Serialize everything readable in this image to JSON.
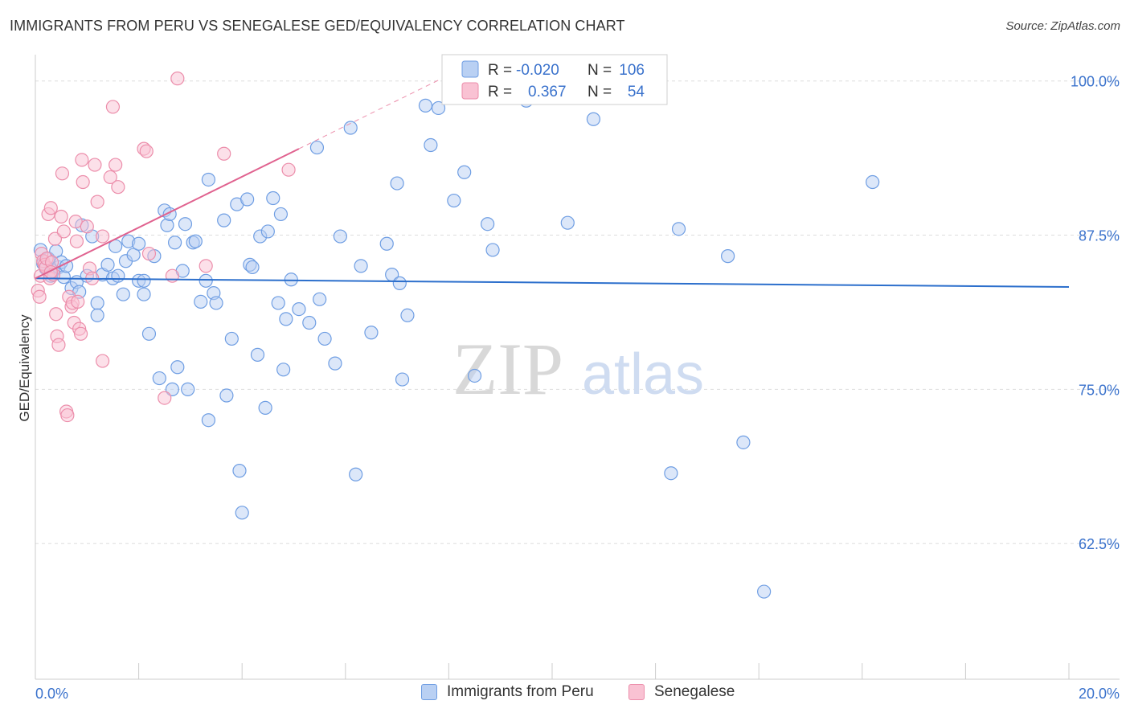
{
  "header": {
    "title": "IMMIGRANTS FROM PERU VS SENEGALESE GED/EQUIVALENCY CORRELATION CHART",
    "source": "Source: ZipAtlas.com"
  },
  "watermark": {
    "zip": "ZIP",
    "atlas": "atlas"
  },
  "legend": {
    "r_label": "R =",
    "n_label": "N =",
    "entries": [
      {
        "r": "-0.020",
        "n": "106"
      },
      {
        "r": "0.367",
        "n": "54"
      }
    ]
  },
  "colors": {
    "peru_fill": "#b9d0f3",
    "peru_stroke": "#6f9ee3",
    "peru_line": "#2c6fcc",
    "sen_fill": "#f9c2d3",
    "sen_stroke": "#ec8eab",
    "sen_line": "#e0628f",
    "tick_text": "#3a72cc",
    "grid": "#dddddd"
  },
  "chart_data": {
    "type": "scatter",
    "title": "IMMIGRANTS FROM PERU VS SENEGALESE GED/EQUIVALENCY CORRELATION CHART",
    "xlabel": "",
    "ylabel": "GED/Equivalency",
    "xlim": [
      0,
      20
    ],
    "ylim": [
      51.5,
      102
    ],
    "x_tick_labels": [
      "0.0%",
      "20.0%"
    ],
    "y_ticks": [
      62.5,
      75.0,
      87.5,
      100.0
    ],
    "y_tick_labels": [
      "62.5%",
      "75.0%",
      "87.5%",
      "100.0%"
    ],
    "grid": true,
    "legend_position": "top-center",
    "series": [
      {
        "name": "Immigrants from Peru",
        "r": -0.02,
        "n": 106,
        "trend": {
          "x": [
            0,
            20
          ],
          "y": [
            84.0,
            83.3
          ]
        },
        "points": [
          [
            0.1,
            86.3
          ],
          [
            0.15,
            85.2
          ],
          [
            0.2,
            84.8
          ],
          [
            0.25,
            85.6
          ],
          [
            0.3,
            84.2
          ],
          [
            0.35,
            84.6
          ],
          [
            0.4,
            86.2
          ],
          [
            0.45,
            84.9
          ],
          [
            0.5,
            85.3
          ],
          [
            0.55,
            84.1
          ],
          [
            0.6,
            85.0
          ],
          [
            0.7,
            83.2
          ],
          [
            0.8,
            83.7
          ],
          [
            0.85,
            82.9
          ],
          [
            0.9,
            88.3
          ],
          [
            1.0,
            84.2
          ],
          [
            1.1,
            87.4
          ],
          [
            1.2,
            82.0
          ],
          [
            1.2,
            81.0
          ],
          [
            1.3,
            84.3
          ],
          [
            1.4,
            85.1
          ],
          [
            1.5,
            84.0
          ],
          [
            1.55,
            86.6
          ],
          [
            1.6,
            84.2
          ],
          [
            1.7,
            82.7
          ],
          [
            1.75,
            85.4
          ],
          [
            1.8,
            87.0
          ],
          [
            1.9,
            85.9
          ],
          [
            2.0,
            83.8
          ],
          [
            2.0,
            86.8
          ],
          [
            2.1,
            83.8
          ],
          [
            2.1,
            82.7
          ],
          [
            2.2,
            79.5
          ],
          [
            2.3,
            85.8
          ],
          [
            2.4,
            75.9
          ],
          [
            2.5,
            89.5
          ],
          [
            2.55,
            88.3
          ],
          [
            2.6,
            89.2
          ],
          [
            2.65,
            75.0
          ],
          [
            2.7,
            86.9
          ],
          [
            2.75,
            76.8
          ],
          [
            2.85,
            84.6
          ],
          [
            2.9,
            88.4
          ],
          [
            2.95,
            75.0
          ],
          [
            3.05,
            86.9
          ],
          [
            3.1,
            87.0
          ],
          [
            3.2,
            82.1
          ],
          [
            3.3,
            83.8
          ],
          [
            3.35,
            92.0
          ],
          [
            3.35,
            72.5
          ],
          [
            3.45,
            82.8
          ],
          [
            3.5,
            82.0
          ],
          [
            3.65,
            88.7
          ],
          [
            3.7,
            74.5
          ],
          [
            3.8,
            79.1
          ],
          [
            3.9,
            90.0
          ],
          [
            3.95,
            68.4
          ],
          [
            4.0,
            65.0
          ],
          [
            4.1,
            90.4
          ],
          [
            4.15,
            85.1
          ],
          [
            4.2,
            84.9
          ],
          [
            4.3,
            77.8
          ],
          [
            4.35,
            87.4
          ],
          [
            4.45,
            73.5
          ],
          [
            4.5,
            87.8
          ],
          [
            4.6,
            90.5
          ],
          [
            4.7,
            82.0
          ],
          [
            4.75,
            89.2
          ],
          [
            4.8,
            76.6
          ],
          [
            4.85,
            80.7
          ],
          [
            4.95,
            83.9
          ],
          [
            5.1,
            81.5
          ],
          [
            5.3,
            80.4
          ],
          [
            5.45,
            94.6
          ],
          [
            5.5,
            82.3
          ],
          [
            5.6,
            79.1
          ],
          [
            5.8,
            77.1
          ],
          [
            5.9,
            87.4
          ],
          [
            6.1,
            96.2
          ],
          [
            6.2,
            68.1
          ],
          [
            6.3,
            85.0
          ],
          [
            6.5,
            79.6
          ],
          [
            6.8,
            86.8
          ],
          [
            6.9,
            84.3
          ],
          [
            7.0,
            91.7
          ],
          [
            7.05,
            83.6
          ],
          [
            7.1,
            75.8
          ],
          [
            7.2,
            81.0
          ],
          [
            7.55,
            98.0
          ],
          [
            7.65,
            94.8
          ],
          [
            7.8,
            97.8
          ],
          [
            8.1,
            90.3
          ],
          [
            8.3,
            92.6
          ],
          [
            8.5,
            76.1
          ],
          [
            8.75,
            88.4
          ],
          [
            8.85,
            86.3
          ],
          [
            9.5,
            98.4
          ],
          [
            10.3,
            88.5
          ],
          [
            10.8,
            96.9
          ],
          [
            12.3,
            68.2
          ],
          [
            12.45,
            88.0
          ],
          [
            13.4,
            85.8
          ],
          [
            13.7,
            70.7
          ],
          [
            14.1,
            58.6
          ],
          [
            16.2,
            91.8
          ],
          [
            9.8,
            100.0
          ]
        ]
      },
      {
        "name": "Senegalese",
        "r": 0.367,
        "n": 54,
        "trend": {
          "x": [
            0,
            5.1
          ],
          "y": [
            84.0,
            94.5
          ]
        },
        "points": [
          [
            0.05,
            83.0
          ],
          [
            0.08,
            82.5
          ],
          [
            0.1,
            84.2
          ],
          [
            0.12,
            86.0
          ],
          [
            0.15,
            85.4
          ],
          [
            0.18,
            85.1
          ],
          [
            0.2,
            84.9
          ],
          [
            0.22,
            85.6
          ],
          [
            0.25,
            89.2
          ],
          [
            0.28,
            84.0
          ],
          [
            0.3,
            89.7
          ],
          [
            0.32,
            85.3
          ],
          [
            0.35,
            84.3
          ],
          [
            0.38,
            87.2
          ],
          [
            0.4,
            81.1
          ],
          [
            0.42,
            79.3
          ],
          [
            0.45,
            78.6
          ],
          [
            0.5,
            89.0
          ],
          [
            0.52,
            92.5
          ],
          [
            0.55,
            87.8
          ],
          [
            0.6,
            73.2
          ],
          [
            0.62,
            72.9
          ],
          [
            0.65,
            82.5
          ],
          [
            0.7,
            81.7
          ],
          [
            0.72,
            82.0
          ],
          [
            0.75,
            80.4
          ],
          [
            0.78,
            88.6
          ],
          [
            0.8,
            87.0
          ],
          [
            0.82,
            82.1
          ],
          [
            0.85,
            79.9
          ],
          [
            0.88,
            79.5
          ],
          [
            0.9,
            93.6
          ],
          [
            0.92,
            91.8
          ],
          [
            1.0,
            88.2
          ],
          [
            1.05,
            84.8
          ],
          [
            1.1,
            84.0
          ],
          [
            1.15,
            93.2
          ],
          [
            1.2,
            90.2
          ],
          [
            1.3,
            87.4
          ],
          [
            1.3,
            77.3
          ],
          [
            1.45,
            92.2
          ],
          [
            1.5,
            97.9
          ],
          [
            1.55,
            93.2
          ],
          [
            1.6,
            91.4
          ],
          [
            2.1,
            94.5
          ],
          [
            2.15,
            94.3
          ],
          [
            2.2,
            86.0
          ],
          [
            2.5,
            74.3
          ],
          [
            2.65,
            84.2
          ],
          [
            2.75,
            100.2
          ],
          [
            3.3,
            85.0
          ],
          [
            3.65,
            94.1
          ],
          [
            4.9,
            92.8
          ],
          [
            0.3,
            84.5
          ]
        ]
      }
    ]
  },
  "bottom_legend": {
    "items": [
      {
        "label": "Immigrants from Peru"
      },
      {
        "label": "Senegalese"
      }
    ]
  }
}
